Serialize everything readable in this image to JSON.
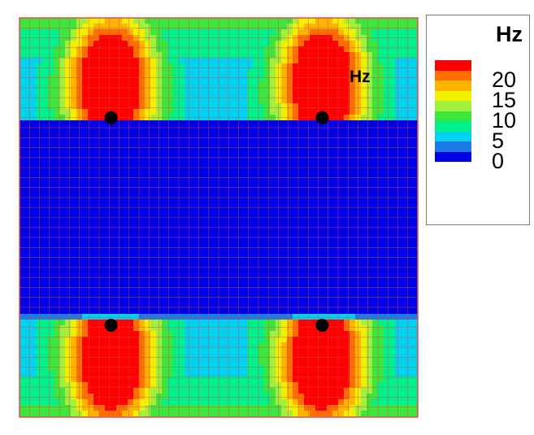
{
  "chart_data": {
    "type": "heatmap",
    "title": "",
    "xlabel": "",
    "ylabel": "",
    "annotation": "Hz",
    "colorbar": {
      "title": "Hz",
      "ticks": [
        {
          "value": 20,
          "label": "20"
        },
        {
          "value": 15,
          "label": "15"
        },
        {
          "value": 10,
          "label": "10"
        },
        {
          "value": 5,
          "label": "5"
        },
        {
          "value": 0,
          "label": "0"
        }
      ],
      "levels": [
        {
          "min": 0,
          "max": 2.5,
          "color": "#0000e6"
        },
        {
          "min": 2.5,
          "max": 5,
          "color": "#1e78e6"
        },
        {
          "min": 5,
          "max": 7.5,
          "color": "#00d2f0"
        },
        {
          "min": 7.5,
          "max": 10,
          "color": "#00f08c"
        },
        {
          "min": 10,
          "max": 12.5,
          "color": "#3ce63c"
        },
        {
          "min": 12.5,
          "max": 15,
          "color": "#a0f03c"
        },
        {
          "min": 15,
          "max": 17.5,
          "color": "#f0f000"
        },
        {
          "min": 17.5,
          "max": 20,
          "color": "#ffb400"
        },
        {
          "min": 20,
          "max": 22.5,
          "color": "#ff6e00"
        },
        {
          "min": 22.5,
          "max": 25,
          "color": "#ff0000"
        }
      ]
    },
    "sources": [
      {
        "x": 0.23,
        "y": 0.75
      },
      {
        "x": 0.76,
        "y": 0.75
      },
      {
        "x": 0.23,
        "y": 0.23
      },
      {
        "x": 0.76,
        "y": 0.23
      }
    ],
    "grid": true
  }
}
